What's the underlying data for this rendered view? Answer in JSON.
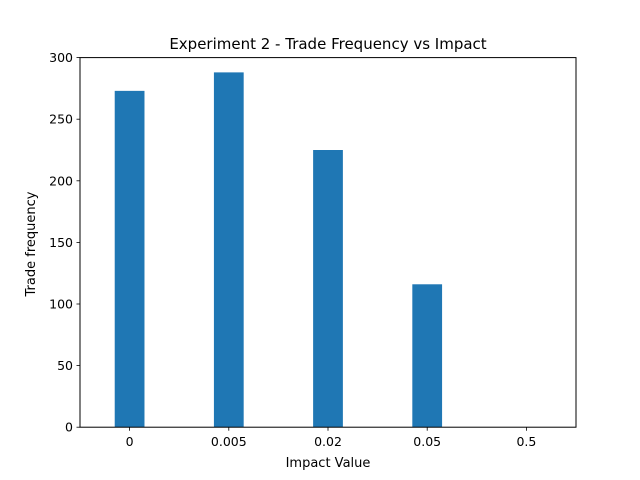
{
  "chart_data": {
    "type": "bar",
    "title": "Experiment 2 - Trade Frequency vs Impact",
    "xlabel": "Impact Value",
    "ylabel": "Trade frequency",
    "categories": [
      "0",
      "0.005",
      "0.02",
      "0.05",
      "0.5"
    ],
    "values": [
      273,
      288,
      225,
      116,
      0
    ],
    "ylim": [
      0,
      300
    ],
    "yticks": [
      0,
      50,
      100,
      150,
      200,
      250,
      300
    ],
    "grid": false,
    "legend": "none",
    "bar_color": "#1f77b4"
  }
}
